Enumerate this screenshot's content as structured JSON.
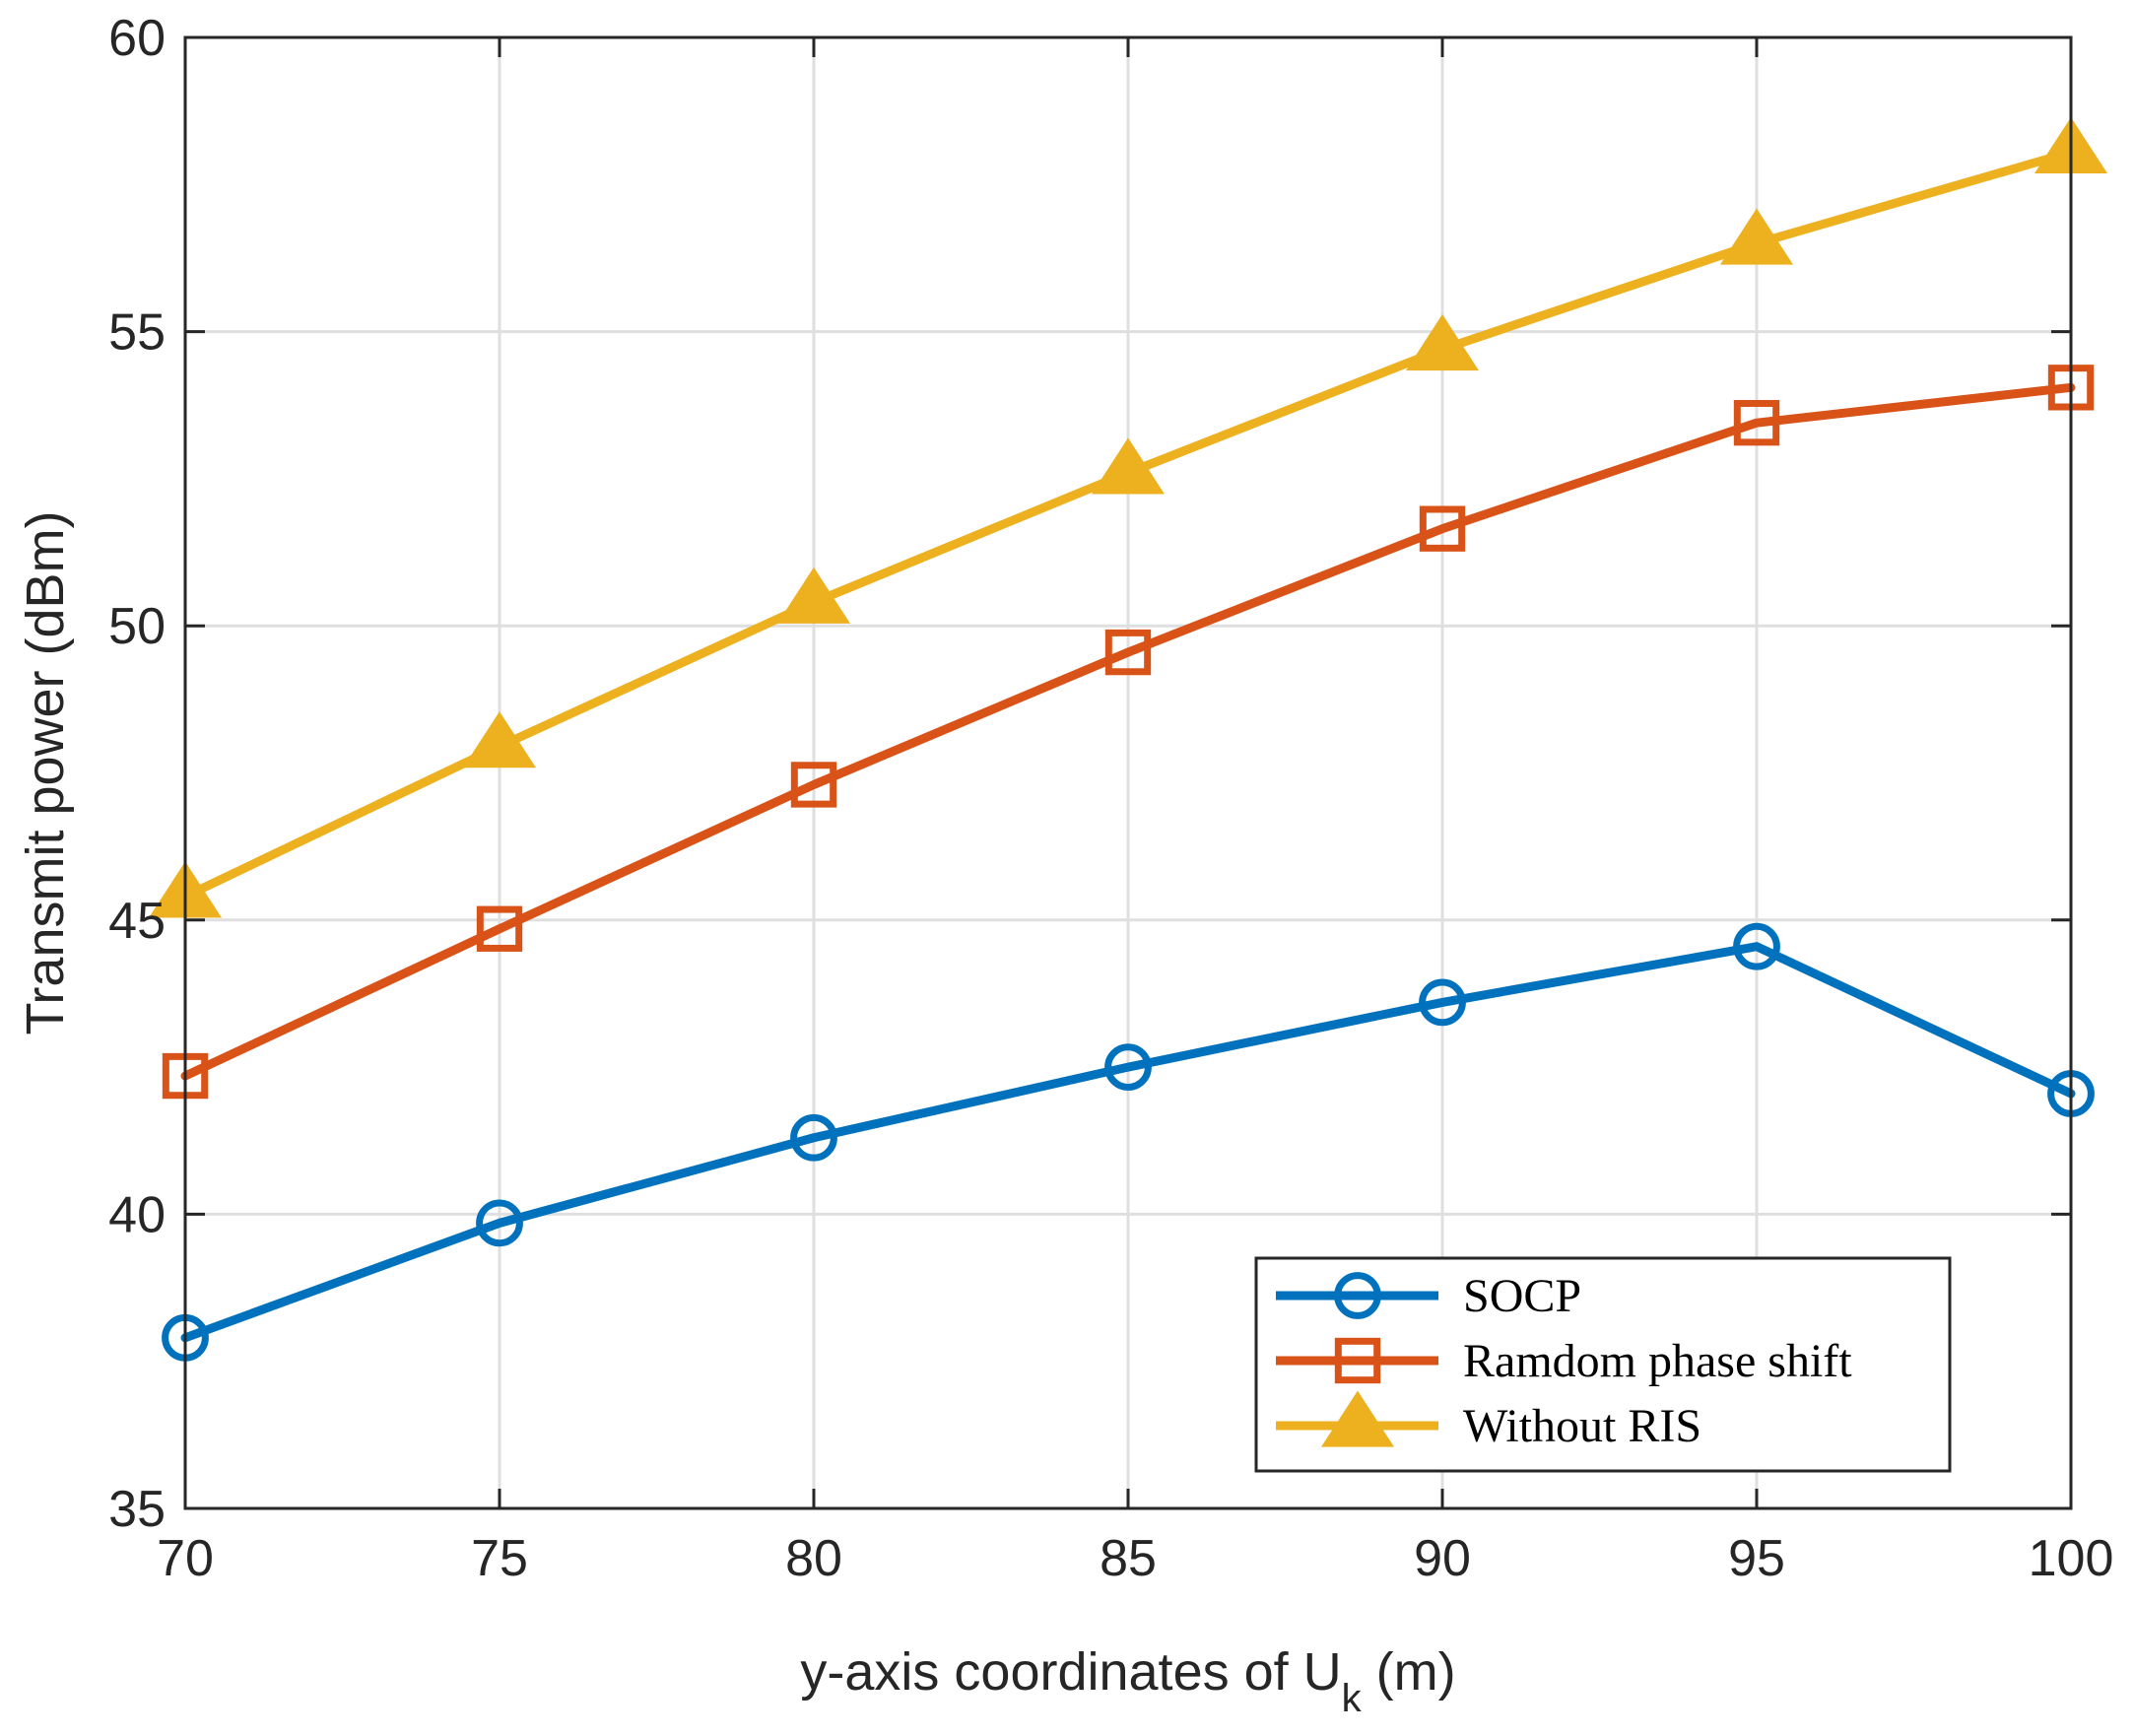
{
  "chart_data": {
    "type": "line",
    "title": "",
    "xlabel": "y-axis coordinates of U",
    "xlabel_subscript": "k",
    "xlabel_suffix": " (m)",
    "ylabel": "Transmit power (dBm)",
    "x": [
      70,
      75,
      80,
      85,
      90,
      95,
      100
    ],
    "xlim": [
      70,
      100
    ],
    "ylim": [
      35,
      60
    ],
    "xticks": [
      70,
      75,
      80,
      85,
      90,
      95,
      100
    ],
    "yticks": [
      35,
      40,
      45,
      50,
      55,
      60
    ],
    "grid": true,
    "legend_position": "bottom-right",
    "series": [
      {
        "name": "SOCP",
        "color": "#0072BD",
        "marker": "circle",
        "values": [
          37.9,
          39.85,
          41.3,
          42.5,
          43.6,
          44.55,
          42.05
        ]
      },
      {
        "name": "Ramdom phase shift",
        "color": "#D95319",
        "marker": "square",
        "values": [
          42.35,
          44.85,
          47.3,
          49.55,
          51.65,
          53.45,
          54.05
        ]
      },
      {
        "name": "Without RIS",
        "color": "#EDB120",
        "marker": "triangle",
        "values": [
          45.4,
          47.95,
          50.4,
          52.6,
          54.7,
          56.5,
          58.05
        ]
      }
    ]
  }
}
